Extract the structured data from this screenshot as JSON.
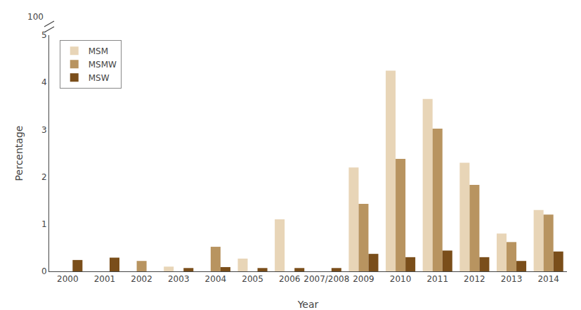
{
  "chart_data": {
    "type": "bar",
    "xlabel": "Year",
    "ylabel": "Percentage",
    "categories": [
      "2000",
      "2001",
      "2002",
      "2003",
      "2004",
      "2005",
      "2006",
      "2007/2008",
      "2009",
      "2010",
      "2011",
      "2012",
      "2013",
      "2014"
    ],
    "series": [
      {
        "name": "MSM",
        "color": "#e8d5b7",
        "values": [
          0.0,
          0.0,
          0.0,
          0.1,
          0.0,
          0.27,
          1.1,
          0.0,
          2.2,
          4.25,
          3.65,
          2.3,
          0.8,
          1.3
        ]
      },
      {
        "name": "MSMW",
        "color": "#b89460",
        "values": [
          0.0,
          0.0,
          0.22,
          0.0,
          0.52,
          0.0,
          0.0,
          0.0,
          1.43,
          2.38,
          3.02,
          1.83,
          0.62,
          1.2
        ]
      },
      {
        "name": "MSW",
        "color": "#7a4e1a",
        "values": [
          0.24,
          0.29,
          0.0,
          0.07,
          0.09,
          0.07,
          0.07,
          0.07,
          0.37,
          0.3,
          0.44,
          0.3,
          0.22,
          0.42
        ]
      }
    ],
    "ylim": [
      0,
      5
    ],
    "yticks": [
      0,
      1,
      2,
      3,
      4,
      5
    ],
    "grid": false,
    "legend": "upper left",
    "annotations": [
      {
        "text": "100"
      }
    ]
  }
}
